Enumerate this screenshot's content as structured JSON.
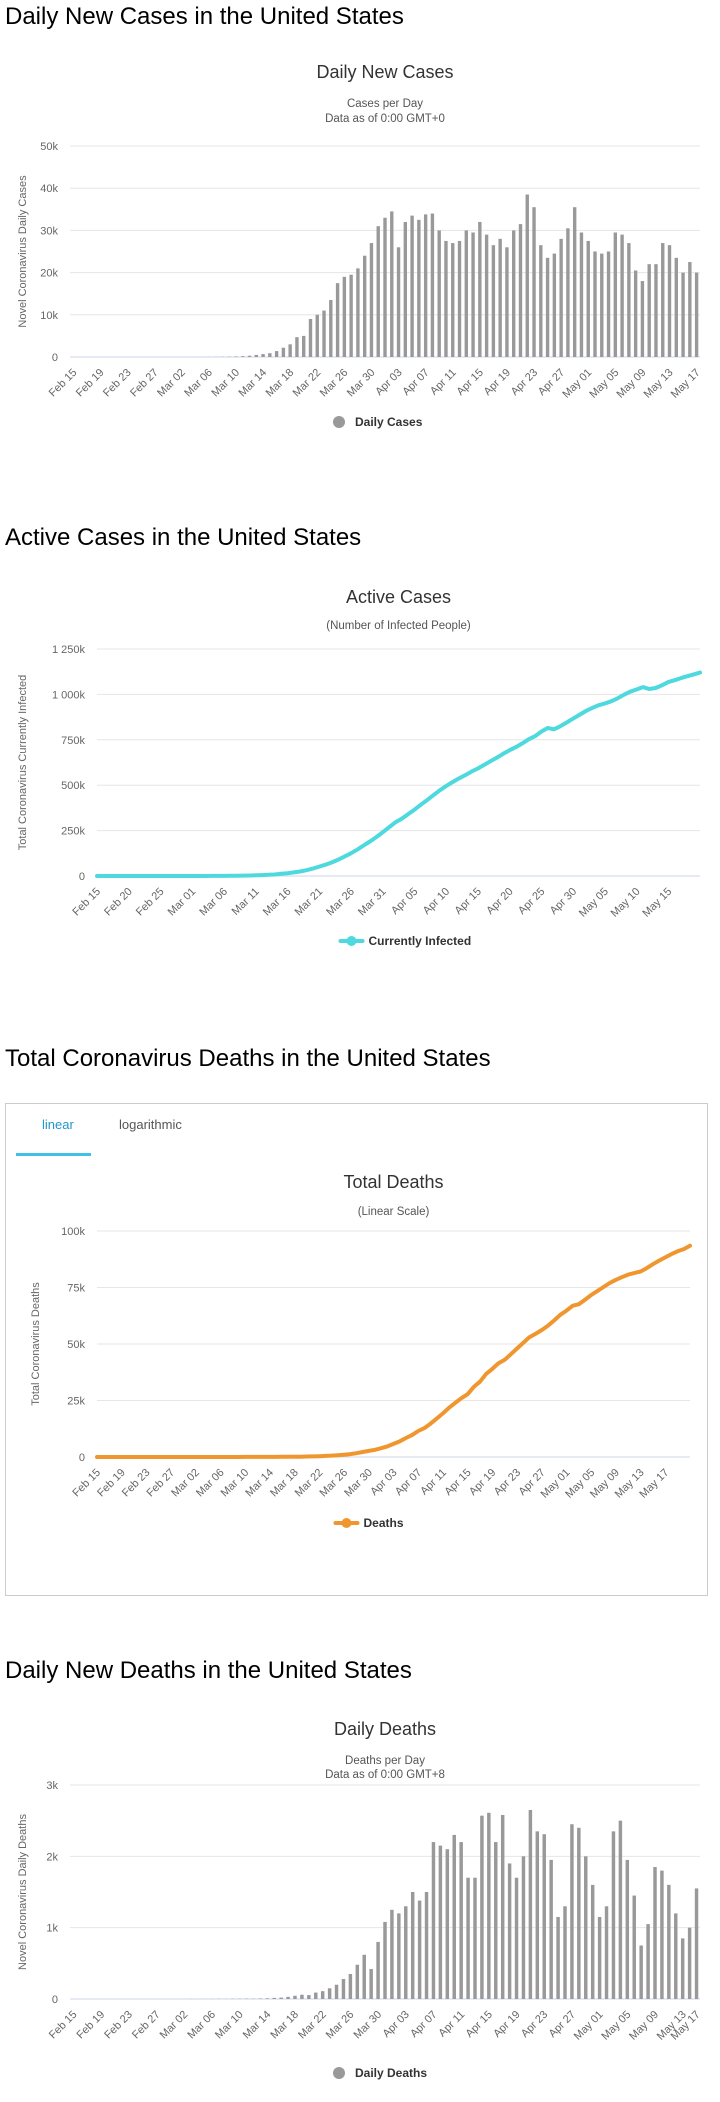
{
  "sections": {
    "daily_cases_heading": "Daily New Cases in the United States",
    "active_cases_heading": "Active Cases in the United States",
    "total_deaths_heading": "Total Coronavirus Deaths in the United States",
    "daily_deaths_heading": "Daily New Deaths in the United States"
  },
  "tabs": {
    "linear": "linear",
    "logarithmic": "logarithmic",
    "active": "linear"
  },
  "colors": {
    "bar": "#999999",
    "active_line": "#4dd9de",
    "deaths_line": "#f0962e",
    "tab_accent": "#3fc0e8"
  },
  "chart_data": [
    {
      "id": "daily_cases",
      "type": "bar",
      "title": "Daily New Cases",
      "subtitle": "Cases per Day",
      "subtitle2": "Data as of 0:00 GMT+0",
      "xlabel": "",
      "ylabel": "Novel Coronavirus Daily Cases",
      "ylim": [
        0,
        50000
      ],
      "yticks": [
        0,
        10000,
        20000,
        30000,
        40000,
        50000
      ],
      "ytick_labels": [
        "0",
        "10k",
        "20k",
        "30k",
        "40k",
        "50k"
      ],
      "x_start": "Feb 15",
      "xtick_labels": [
        "Feb 15",
        "Feb 19",
        "Feb 23",
        "Feb 27",
        "Mar 02",
        "Mar 06",
        "Mar 10",
        "Mar 14",
        "Mar 18",
        "Mar 22",
        "Mar 26",
        "Mar 30",
        "Apr 03",
        "Apr 07",
        "Apr 11",
        "Apr 15",
        "Apr 19",
        "Apr 23",
        "Apr 27",
        "May 01",
        "May 05",
        "May 09",
        "May 13",
        "May 17"
      ],
      "legend": "Daily Cases",
      "values": [
        0,
        0,
        0,
        0,
        0,
        0,
        0,
        0,
        0,
        0,
        0,
        0,
        0,
        0,
        0,
        0,
        3,
        5,
        10,
        15,
        20,
        30,
        50,
        80,
        130,
        200,
        300,
        500,
        700,
        900,
        1400,
        2200,
        3000,
        4700,
        5000,
        9000,
        10000,
        11000,
        13500,
        17500,
        19000,
        19500,
        21000,
        24000,
        27000,
        31000,
        33000,
        34500,
        26000,
        32000,
        33500,
        32500,
        33800,
        34000,
        30000,
        27500,
        27000,
        27500,
        30000,
        29500,
        32000,
        29000,
        26500,
        28000,
        26000,
        30000,
        31500,
        38500,
        35500,
        26500,
        23500,
        24500,
        28000,
        30500,
        35500,
        29500,
        27500,
        25000,
        24500,
        25000,
        29500,
        29000,
        27000,
        20500,
        18000,
        22000,
        22000,
        27000,
        26500,
        23500,
        20000,
        22500,
        20000
      ]
    },
    {
      "id": "active_cases",
      "type": "line",
      "title": "Active Cases",
      "subtitle": "(Number of Infected People)",
      "xlabel": "",
      "ylabel": "Total Coronavirus Currently Infected",
      "ylim": [
        0,
        1250000
      ],
      "yticks": [
        0,
        250000,
        500000,
        750000,
        1000000,
        1250000
      ],
      "ytick_labels": [
        "0",
        "250k",
        "500k",
        "750k",
        "1 000k",
        "1 250k"
      ],
      "x_start": "Feb 15",
      "xtick_labels": [
        "Feb 15",
        "Feb 20",
        "Feb 25",
        "Mar 01",
        "Mar 06",
        "Mar 11",
        "Mar 16",
        "Mar 21",
        "Mar 26",
        "Mar 31",
        "Apr 05",
        "Apr 10",
        "Apr 15",
        "Apr 20",
        "Apr 25",
        "Apr 30",
        "May 05",
        "May 10",
        "May 15"
      ],
      "legend": "Currently Infected",
      "values": [
        15,
        15,
        15,
        15,
        15,
        15,
        15,
        15,
        15,
        15,
        16,
        20,
        25,
        40,
        60,
        100,
        150,
        200,
        300,
        500,
        700,
        1000,
        1500,
        2000,
        3000,
        4000,
        5000,
        6500,
        8500,
        12000,
        15000,
        20000,
        25000,
        32000,
        41000,
        52000,
        62000,
        75000,
        90000,
        107000,
        125000,
        145000,
        168000,
        190000,
        214000,
        240000,
        268000,
        295000,
        315000,
        340000,
        365000,
        392000,
        418000,
        445000,
        472000,
        495000,
        517000,
        537000,
        555000,
        575000,
        592000,
        612000,
        632000,
        652000,
        673000,
        693000,
        710000,
        730000,
        753000,
        770000,
        795000,
        815000,
        808000,
        825000,
        845000,
        867000,
        887000,
        908000,
        925000,
        940000,
        950000,
        962000,
        978000,
        998000,
        1015000,
        1027000,
        1040000,
        1030000,
        1035000,
        1050000,
        1068000,
        1078000,
        1090000,
        1100000,
        1110000,
        1120000
      ]
    },
    {
      "id": "total_deaths",
      "type": "line",
      "title": "Total Deaths",
      "subtitle": "(Linear Scale)",
      "xlabel": "",
      "ylabel": "Total Coronavirus Deaths",
      "ylim": [
        0,
        100000
      ],
      "yticks": [
        0,
        25000,
        50000,
        75000,
        100000
      ],
      "ytick_labels": [
        "0",
        "25k",
        "50k",
        "75k",
        "100k"
      ],
      "x_start": "Feb 15",
      "xtick_labels": [
        "Feb 15",
        "Feb 19",
        "Feb 23",
        "Feb 27",
        "Mar 02",
        "Mar 06",
        "Mar 10",
        "Mar 14",
        "Mar 18",
        "Mar 22",
        "Mar 26",
        "Mar 30",
        "Apr 03",
        "Apr 07",
        "Apr 11",
        "Apr 15",
        "Apr 19",
        "Apr 23",
        "Apr 27",
        "May 01",
        "May 05",
        "May 09",
        "May 13",
        "May 17"
      ],
      "legend": "Deaths",
      "values": [
        0,
        0,
        0,
        0,
        0,
        0,
        0,
        0,
        0,
        0,
        0,
        0,
        0,
        0,
        0,
        0,
        2,
        6,
        9,
        11,
        12,
        15,
        19,
        22,
        26,
        30,
        36,
        40,
        48,
        57,
        70,
        86,
        109,
        150,
        206,
        255,
        340,
        470,
        600,
        800,
        1000,
        1300,
        1700,
        2200,
        2700,
        3200,
        3900,
        4700,
        5800,
        6900,
        8400,
        9700,
        11500,
        12800,
        14800,
        17000,
        19300,
        21800,
        24000,
        26000,
        27800,
        31000,
        33300,
        36800,
        39000,
        41500,
        43000,
        45500,
        48000,
        50500,
        53000,
        54500,
        56200,
        58100,
        60400,
        62900,
        64800,
        66900,
        67600,
        69600,
        71700,
        73400,
        75200,
        77000,
        78400,
        79600,
        80700,
        81400,
        82100,
        83600,
        85300,
        86900,
        88300,
        89800,
        91000,
        92000,
        93500
      ]
    },
    {
      "id": "daily_deaths",
      "type": "bar",
      "title": "Daily Deaths",
      "subtitle": "Deaths per Day",
      "subtitle2": "Data as of 0:00 GMT+8",
      "xlabel": "",
      "ylabel": "Novel Coronavirus Daily Deaths",
      "ylim": [
        0,
        3000
      ],
      "yticks": [
        0,
        1000,
        2000,
        3000
      ],
      "ytick_labels": [
        "0",
        "1k",
        "2k",
        "3k"
      ],
      "x_start": "Feb 15",
      "xtick_labels": [
        "Feb 15",
        "Feb 19",
        "Feb 23",
        "Feb 27",
        "Mar 02",
        "Mar 06",
        "Mar 10",
        "Mar 14",
        "Mar 18",
        "Mar 22",
        "Mar 26",
        "Mar 30",
        "Apr 03",
        "Apr 07",
        "Apr 11",
        "Apr 15",
        "Apr 19",
        "Apr 23",
        "Apr 27",
        "May 01",
        "May 05",
        "May 09",
        "May 13",
        "May 17"
      ],
      "legend": "Daily Deaths",
      "values": [
        0,
        0,
        0,
        0,
        0,
        0,
        0,
        0,
        0,
        0,
        0,
        0,
        0,
        0,
        0,
        0,
        0,
        2,
        0,
        1,
        1,
        3,
        2,
        3,
        4,
        5,
        4,
        8,
        10,
        15,
        20,
        30,
        45,
        60,
        55,
        90,
        110,
        150,
        200,
        280,
        350,
        480,
        620,
        420,
        800,
        1080,
        1250,
        1200,
        1300,
        1500,
        1380,
        1500,
        2200,
        2150,
        2100,
        2300,
        2200,
        1700,
        1700,
        2570,
        2610,
        2200,
        2580,
        1900,
        1700,
        2000,
        2650,
        2350,
        2310,
        1950,
        1150,
        1300,
        2450,
        2400,
        2000,
        1600,
        1150,
        1300,
        2350,
        2500,
        1950,
        1450,
        750,
        1050,
        1850,
        1800,
        1600,
        1200,
        850,
        1000,
        1550
      ]
    }
  ]
}
